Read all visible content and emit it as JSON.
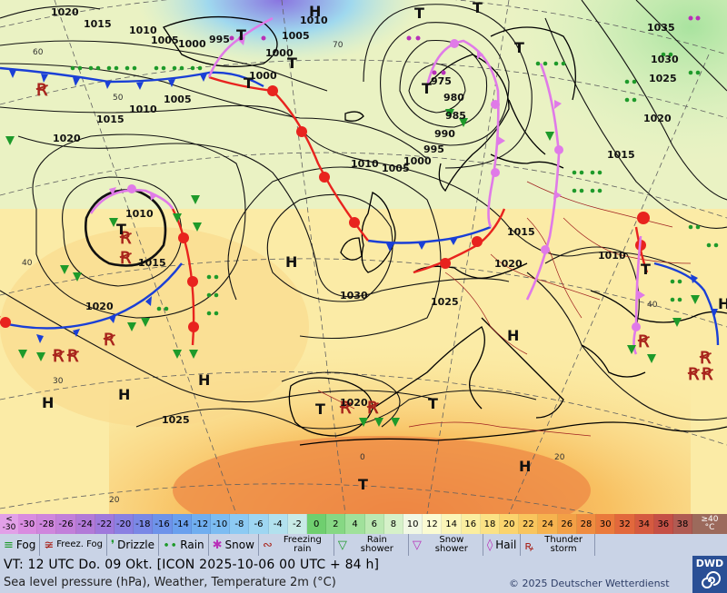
{
  "map": {
    "isobar_labels": [
      {
        "id": "i1",
        "text": "1020"
      },
      {
        "id": "i2",
        "text": "1015"
      },
      {
        "id": "i3",
        "text": "1010"
      },
      {
        "id": "i4",
        "text": "1005"
      },
      {
        "id": "i5",
        "text": "1000"
      },
      {
        "id": "i6",
        "text": "995"
      },
      {
        "id": "i7",
        "text": "1010"
      },
      {
        "id": "i8",
        "text": "1005"
      },
      {
        "id": "i9",
        "text": "1000"
      },
      {
        "id": "i10",
        "text": "1000"
      },
      {
        "id": "i11",
        "text": "1005"
      },
      {
        "id": "i12",
        "text": "1010"
      },
      {
        "id": "i13",
        "text": "1015"
      },
      {
        "id": "i14",
        "text": "1020"
      },
      {
        "id": "i15",
        "text": "975"
      },
      {
        "id": "i16",
        "text": "980"
      },
      {
        "id": "i17",
        "text": "985"
      },
      {
        "id": "i18",
        "text": "990"
      },
      {
        "id": "i19",
        "text": "995"
      },
      {
        "id": "i20",
        "text": "1000"
      },
      {
        "id": "i21",
        "text": "1005"
      },
      {
        "id": "i22",
        "text": "1010"
      },
      {
        "id": "i23",
        "text": "1010"
      },
      {
        "id": "i24",
        "text": "1015"
      },
      {
        "id": "i25",
        "text": "1020"
      },
      {
        "id": "i26",
        "text": "1030"
      },
      {
        "id": "i27",
        "text": "1025"
      },
      {
        "id": "i28",
        "text": "1020"
      },
      {
        "id": "i29",
        "text": "1015"
      },
      {
        "id": "i30",
        "text": "1020"
      },
      {
        "id": "i31",
        "text": "1025"
      },
      {
        "id": "i32",
        "text": "1010"
      },
      {
        "id": "i33",
        "text": "1035"
      },
      {
        "id": "i34",
        "text": "1030"
      },
      {
        "id": "i35",
        "text": "1025"
      },
      {
        "id": "i36",
        "text": "1020"
      },
      {
        "id": "i37",
        "text": "1015"
      },
      {
        "id": "i38",
        "text": "1010"
      },
      {
        "id": "i39",
        "text": "1020"
      }
    ],
    "pressure_centers": [
      {
        "id": "c1",
        "text": "H"
      },
      {
        "id": "c2",
        "text": "T"
      },
      {
        "id": "c3",
        "text": "T"
      },
      {
        "id": "c4",
        "text": "T"
      },
      {
        "id": "c5",
        "text": "T"
      },
      {
        "id": "c6",
        "text": "H"
      },
      {
        "id": "c7",
        "text": "T"
      },
      {
        "id": "c8",
        "text": "T"
      },
      {
        "id": "c9",
        "text": "T"
      },
      {
        "id": "c10",
        "text": "H"
      },
      {
        "id": "c11",
        "text": "H"
      },
      {
        "id": "c12",
        "text": "H"
      },
      {
        "id": "c13",
        "text": "H"
      },
      {
        "id": "c14",
        "text": "T"
      },
      {
        "id": "c15",
        "text": "T"
      },
      {
        "id": "c16",
        "text": "H"
      },
      {
        "id": "c17",
        "text": "T"
      },
      {
        "id": "c18",
        "text": "T"
      },
      {
        "id": "c19",
        "text": "H"
      },
      {
        "id": "c20",
        "text": "T"
      }
    ],
    "grid_labels": [
      {
        "id": "g1",
        "text": "60"
      },
      {
        "id": "g2",
        "text": "50"
      },
      {
        "id": "g3",
        "text": "40"
      },
      {
        "id": "g4",
        "text": "30"
      },
      {
        "id": "g5",
        "text": "20"
      },
      {
        "id": "g6",
        "text": "0"
      },
      {
        "id": "g7",
        "text": "20"
      },
      {
        "id": "g8",
        "text": "40"
      },
      {
        "id": "g9",
        "text": "70"
      }
    ]
  },
  "legend": {
    "temperature_scale": {
      "low_end": {
        "line1": "<",
        "line2": "-30"
      },
      "high_end": {
        "line1": "≥40",
        "line2": "°C"
      },
      "cells": [
        {
          "label": "-30",
          "color": "#d98ce0"
        },
        {
          "label": "-28",
          "color": "#cf86dd"
        },
        {
          "label": "-26",
          "color": "#c27fda"
        },
        {
          "label": "-24",
          "color": "#b27ad8"
        },
        {
          "label": "-22",
          "color": "#9f79dc"
        },
        {
          "label": "-20",
          "color": "#8a80e2"
        },
        {
          "label": "-18",
          "color": "#7a88e6"
        },
        {
          "label": "-16",
          "color": "#6e93ea"
        },
        {
          "label": "-14",
          "color": "#6aa0ee"
        },
        {
          "label": "-12",
          "color": "#70aef0"
        },
        {
          "label": "-10",
          "color": "#7cbcf2"
        },
        {
          "label": "-8",
          "color": "#8ccaf3"
        },
        {
          "label": "-6",
          "color": "#9ed6f2"
        },
        {
          "label": "-4",
          "color": "#b2e1ee"
        },
        {
          "label": "-2",
          "color": "#c8eae6"
        },
        {
          "label": "0",
          "color": "#6fcf6f"
        },
        {
          "label": "2",
          "color": "#86d884"
        },
        {
          "label": "4",
          "color": "#a0e19b"
        },
        {
          "label": "6",
          "color": "#bbe9b2"
        },
        {
          "label": "8",
          "color": "#d6f1c9"
        },
        {
          "label": "10",
          "color": "#f1f8e4"
        },
        {
          "label": "12",
          "color": "#fbfbd2"
        },
        {
          "label": "14",
          "color": "#fbf5b8"
        },
        {
          "label": "16",
          "color": "#fbeea0"
        },
        {
          "label": "18",
          "color": "#fbe286"
        },
        {
          "label": "20",
          "color": "#fbd46e"
        },
        {
          "label": "22",
          "color": "#f9c55d"
        },
        {
          "label": "24",
          "color": "#f6b34f"
        },
        {
          "label": "26",
          "color": "#f3a046"
        },
        {
          "label": "28",
          "color": "#ef8c40"
        },
        {
          "label": "30",
          "color": "#ea7a3c"
        },
        {
          "label": "32",
          "color": "#e2683c"
        },
        {
          "label": "34",
          "color": "#d55a40"
        },
        {
          "label": "36",
          "color": "#c55046"
        },
        {
          "label": "38",
          "color": "#b05b53"
        }
      ]
    },
    "weather_items": [
      {
        "name": "fog",
        "symbol": "≡",
        "label": "Fog",
        "two_line": false
      },
      {
        "name": "freezing-fog",
        "symbol": "≆",
        "label": "Freez. Fog",
        "two_line": true
      },
      {
        "name": "drizzle",
        "symbol": "❜",
        "label": "Drizzle",
        "two_line": false
      },
      {
        "name": "rain",
        "symbol": "∙∙",
        "label": "Rain",
        "two_line": false
      },
      {
        "name": "snow",
        "symbol": "✱",
        "label": "Snow",
        "two_line": false
      },
      {
        "name": "freezing-rain",
        "symbol": "∾",
        "label": "Freezing rain",
        "two_line": true
      },
      {
        "name": "rain-shower",
        "symbol": "▽",
        "label": "Rain shower",
        "two_line": true
      },
      {
        "name": "snow-shower",
        "symbol": "▽",
        "label": "Snow shower",
        "two_line": true
      },
      {
        "name": "hail",
        "symbol": "◊",
        "label": "Hail",
        "two_line": false
      },
      {
        "name": "thunderstorm",
        "symbol": "ꝶ",
        "label": "Thunder storm",
        "two_line": true
      }
    ],
    "vt_text": "VT: 12 UTC Do.  09 Okt. [ICON 2025-10-06  00 UTC + 84 h]",
    "description": "Sea level pressure (hPa), Weather, Temperature 2m (°C)",
    "copyright": "© 2025 Deutscher Wetterdienst",
    "logo_text": "DWD",
    "colors": {
      "cold_front": "#1a3fd6",
      "warm_front": "#e8231e",
      "occlusion": "#e07ae8",
      "legend_bg": "#c9d3e6",
      "logo_bg": "#2a4f95"
    }
  }
}
